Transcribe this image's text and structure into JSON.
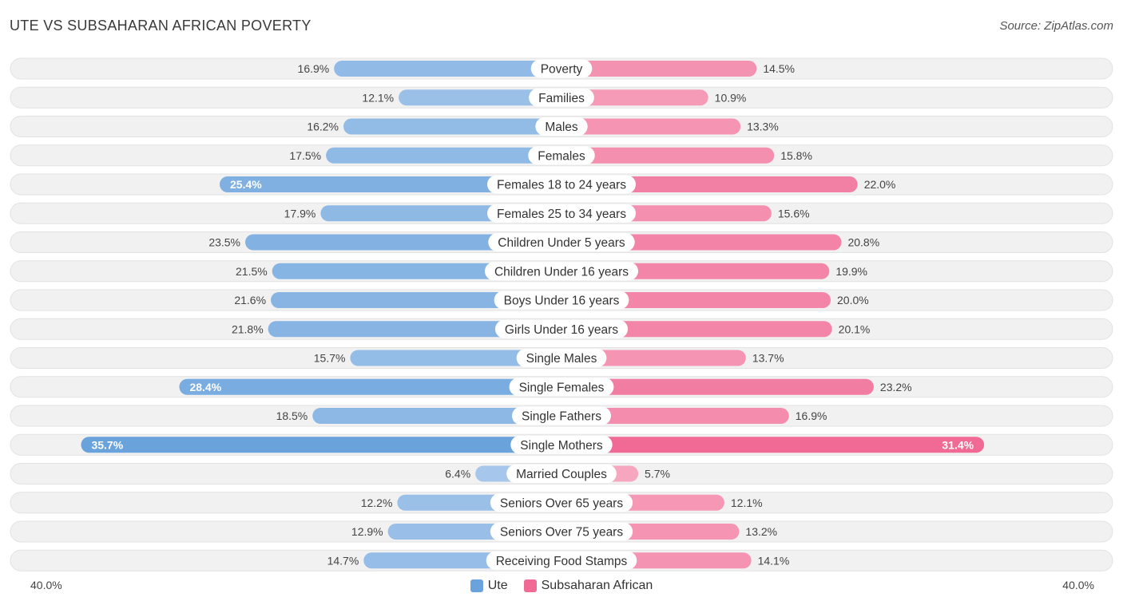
{
  "header": {
    "title": "UTE VS SUBSAHARAN AFRICAN POVERTY",
    "source": "Source: ZipAtlas.com"
  },
  "legend": {
    "left_label": "Ute",
    "right_label": "Subsaharan African"
  },
  "axis": {
    "left_label": "40.0%",
    "right_label": "40.0%"
  },
  "colors": {
    "ute": "#6aa3dc",
    "ute_light": "#a9c9ec",
    "subsaharan": "#f06a95",
    "subsaharan_light": "#f7a8c1",
    "row_bg": "#f1f1f1"
  },
  "chart_data": {
    "type": "bar",
    "title": "UTE VS SUBSAHARAN AFRICAN POVERTY",
    "xlim": [
      -40,
      40
    ],
    "categories": [
      "Poverty",
      "Families",
      "Males",
      "Females",
      "Females 18 to 24 years",
      "Females 25 to 34 years",
      "Children Under 5 years",
      "Children Under 16 years",
      "Boys Under 16 years",
      "Girls Under 16 years",
      "Single Males",
      "Single Females",
      "Single Fathers",
      "Single Mothers",
      "Married Couples",
      "Seniors Over 65 years",
      "Seniors Over 75 years",
      "Receiving Food Stamps"
    ],
    "series": [
      {
        "name": "Ute",
        "values": [
          16.9,
          12.1,
          16.2,
          17.5,
          25.4,
          17.9,
          23.5,
          21.5,
          21.6,
          21.8,
          15.7,
          28.4,
          18.5,
          35.7,
          6.4,
          12.2,
          12.9,
          14.7
        ],
        "labels": [
          "16.9%",
          "12.1%",
          "16.2%",
          "17.5%",
          "25.4%",
          "17.9%",
          "23.5%",
          "21.5%",
          "21.6%",
          "21.8%",
          "15.7%",
          "28.4%",
          "18.5%",
          "35.7%",
          "6.4%",
          "12.2%",
          "12.9%",
          "14.7%"
        ]
      },
      {
        "name": "Subsaharan African",
        "values": [
          14.5,
          10.9,
          13.3,
          15.8,
          22.0,
          15.6,
          20.8,
          19.9,
          20.0,
          20.1,
          13.7,
          23.2,
          16.9,
          31.4,
          5.7,
          12.1,
          13.2,
          14.1
        ],
        "labels": [
          "14.5%",
          "10.9%",
          "13.3%",
          "15.8%",
          "22.0%",
          "15.6%",
          "20.8%",
          "19.9%",
          "20.0%",
          "20.1%",
          "13.7%",
          "23.2%",
          "16.9%",
          "31.4%",
          "5.7%",
          "12.1%",
          "13.2%",
          "14.1%"
        ]
      }
    ]
  }
}
